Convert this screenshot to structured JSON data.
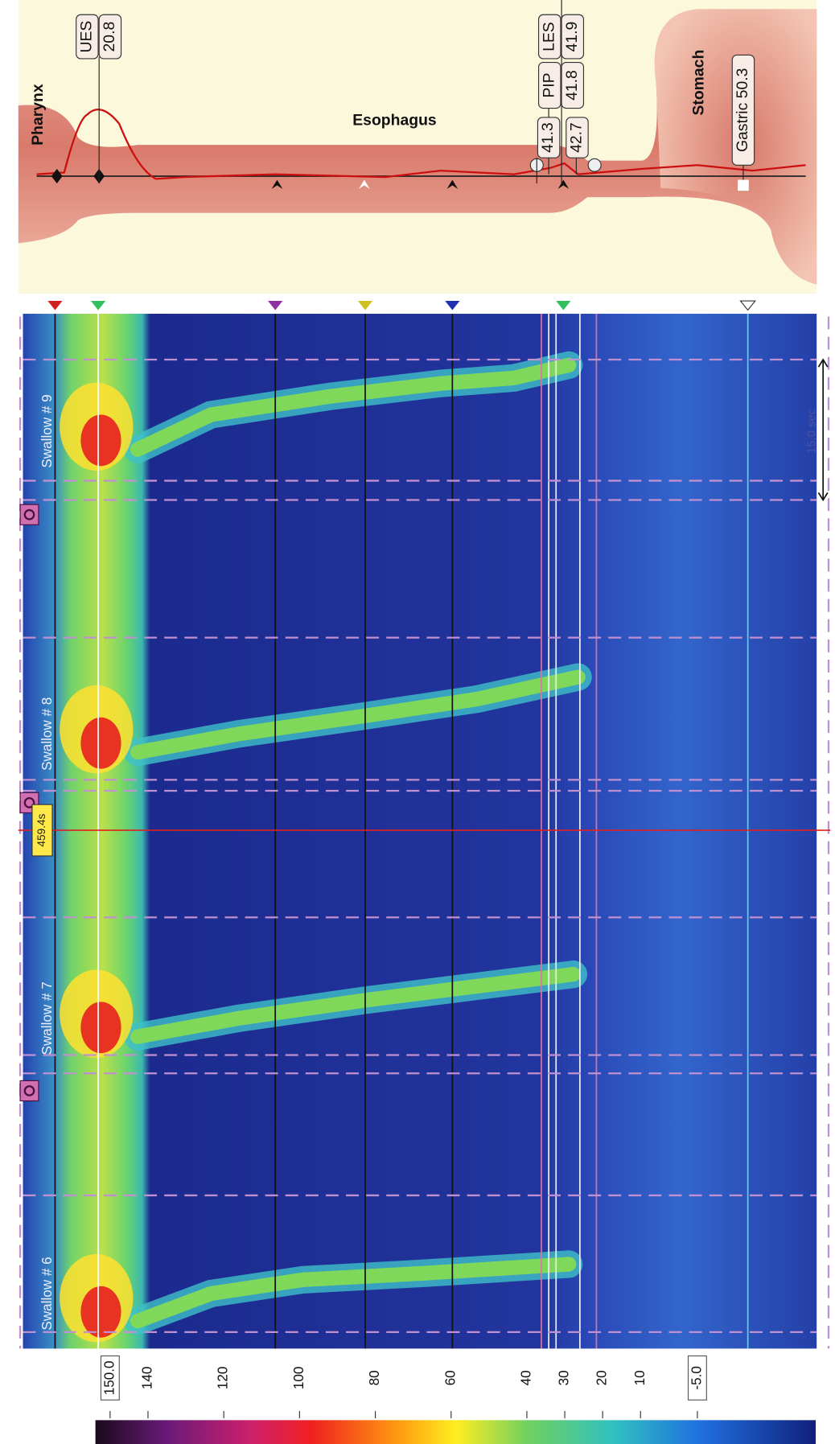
{
  "anatomy": {
    "pharynx": "Pharynx",
    "ues": {
      "label": "UES",
      "value": "20.8"
    },
    "esophagus": "Esophagus",
    "pip": {
      "label": "PIP",
      "value": "41.8"
    },
    "les": {
      "label": "LES",
      "value": "41.9"
    },
    "markers": [
      "41.3",
      "42.7"
    ],
    "stomach": "Stomach",
    "gastric": "Gastric 50.3"
  },
  "plot": {
    "swallows": [
      "Swallow # 6",
      "Swallow # 7",
      "Swallow # 8",
      "Swallow # 9"
    ],
    "time_cursor": "459.4s",
    "interval": "15.0 sec"
  },
  "colorbar": {
    "ticks": [
      {
        "value": 150,
        "label": "150.0"
      },
      140,
      120,
      100,
      80,
      60,
      40,
      30,
      20,
      10,
      {
        "value": -5,
        "label": "-5.0"
      }
    ]
  }
}
